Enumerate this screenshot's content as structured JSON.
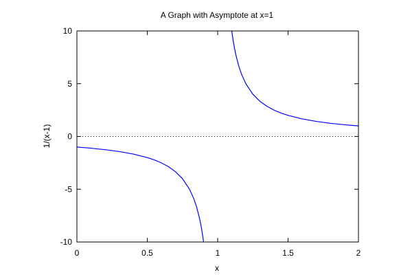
{
  "chart_data": {
    "type": "line",
    "title": "A Graph with Asymptote at x=1",
    "xlabel": "x",
    "ylabel": "1/(x-1)",
    "xlim": [
      0,
      2
    ],
    "ylim": [
      -10,
      10
    ],
    "x_ticks": [
      0,
      0.5,
      1,
      1.5,
      2
    ],
    "x_tick_labels": [
      "0",
      "0.5",
      "1",
      "1.5",
      "2"
    ],
    "y_ticks": [
      -10,
      -5,
      0,
      5,
      10
    ],
    "y_tick_labels": [
      "-10",
      "-5",
      "0",
      "5",
      "10"
    ],
    "grid": false,
    "reference_lines": [
      {
        "axis": "y",
        "value": 0,
        "style": "dotted",
        "color": "#000000"
      }
    ],
    "series": [
      {
        "function": "1/(x-1)",
        "color": "#0000ff",
        "segments": [
          {
            "x": [
              0,
              0.1,
              0.2,
              0.3,
              0.4,
              0.5,
              0.55,
              0.6,
              0.65,
              0.7,
              0.75,
              0.8,
              0.83,
              0.85,
              0.87,
              0.88,
              0.89,
              0.9
            ],
            "y": [
              -1,
              -1.111,
              -1.25,
              -1.429,
              -1.667,
              -2,
              -2.222,
              -2.5,
              -2.857,
              -3.333,
              -4,
              -5,
              -5.882,
              -6.667,
              -7.692,
              -8.333,
              -9.091,
              -10
            ]
          },
          {
            "x": [
              1.1,
              1.11,
              1.12,
              1.13,
              1.15,
              1.17,
              1.2,
              1.25,
              1.3,
              1.35,
              1.4,
              1.45,
              1.5,
              1.6,
              1.7,
              1.8,
              1.9,
              2
            ],
            "y": [
              10,
              9.091,
              8.333,
              7.692,
              6.667,
              5.882,
              5,
              4,
              3.333,
              2.857,
              2.5,
              2.222,
              2,
              1.667,
              1.429,
              1.25,
              1.111,
              1
            ]
          }
        ]
      }
    ]
  }
}
